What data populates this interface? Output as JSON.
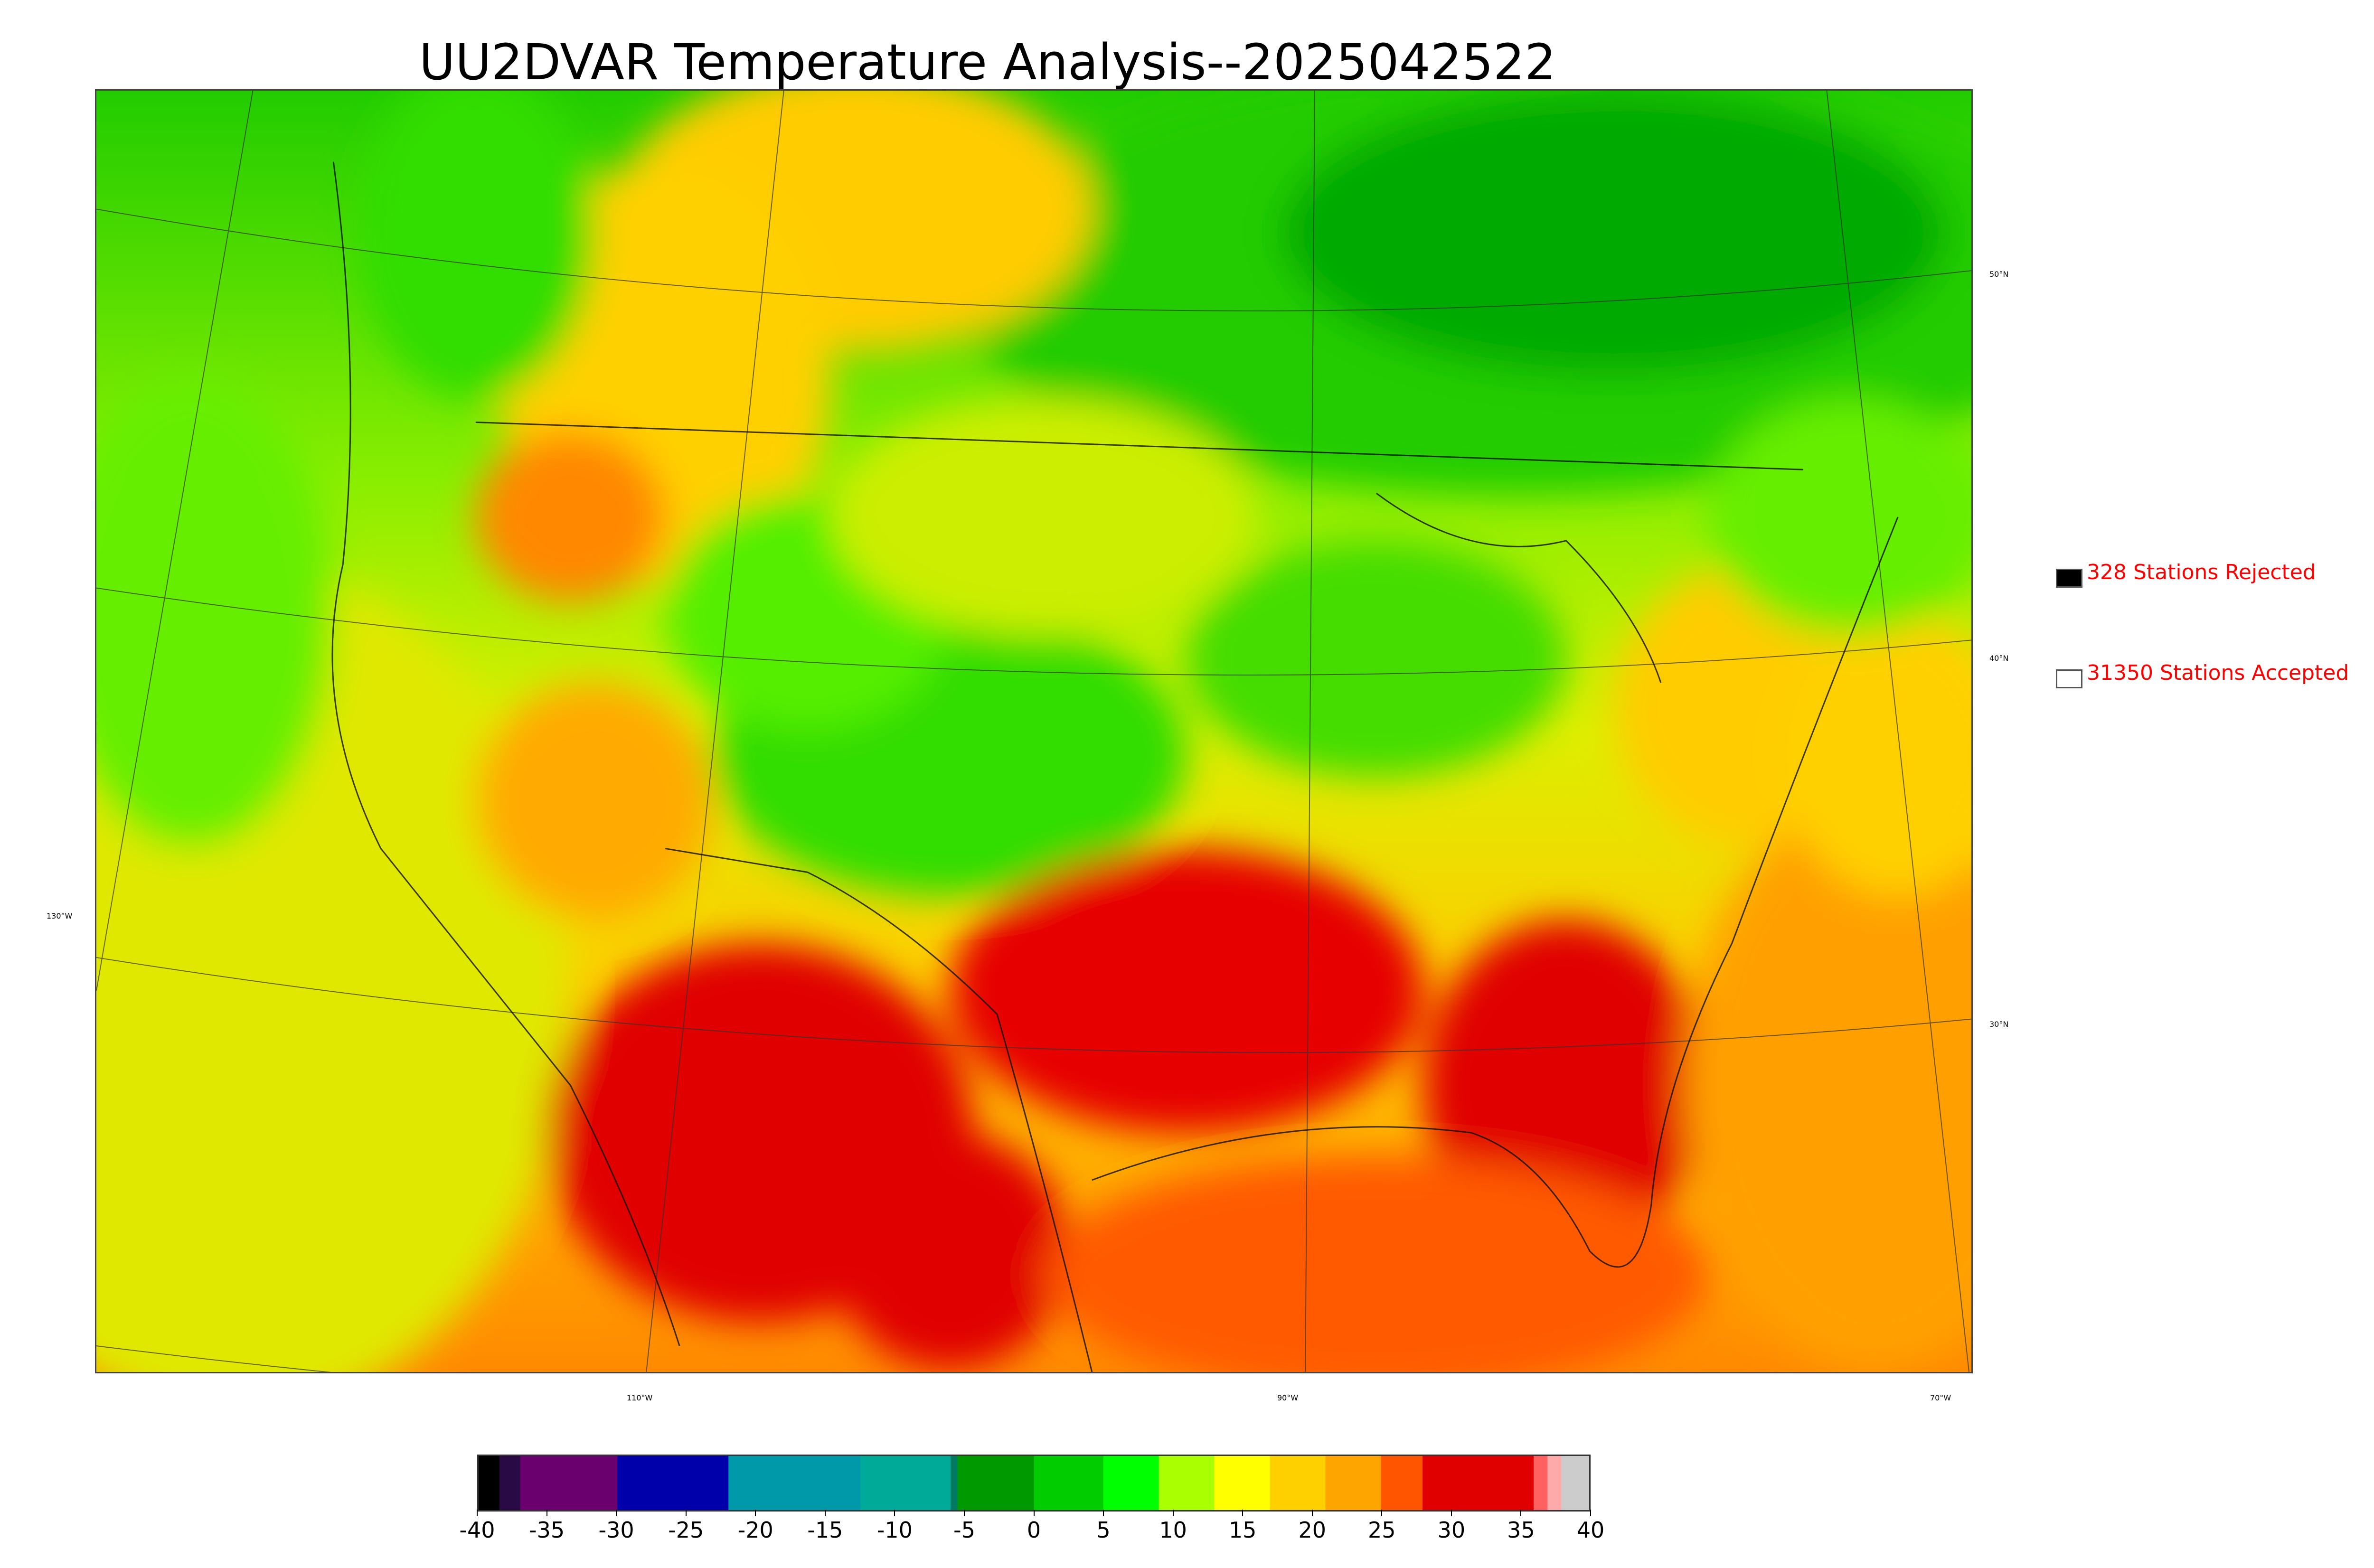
{
  "title": "UU2DVAR Temperature Analysis--2025042522",
  "map": {
    "latitude_labels": [
      "50°N",
      "40°N",
      "30°N"
    ],
    "longitude_labels": [
      "130°W",
      "110°W",
      "90°W",
      "70°W"
    ]
  },
  "legend": {
    "rejected": {
      "label": "328 Stations Rejected",
      "color": "#000000"
    },
    "accepted": {
      "label": "31350 Stations Accepted",
      "color": "#ffffff"
    }
  },
  "colorbar": {
    "ticks": [
      "-40",
      "-35",
      "-30",
      "-25",
      "-20",
      "-15",
      "-10",
      "-5",
      "0",
      "5",
      "10",
      "15",
      "20",
      "25",
      "30",
      "35",
      "40"
    ],
    "min": -40,
    "max": 40,
    "stops": [
      {
        "from": -40,
        "to": -38.5,
        "color": "#000000"
      },
      {
        "from": -38.5,
        "to": -37,
        "color": "#2a0a44"
      },
      {
        "from": -37,
        "to": -30,
        "color": "#6a006e"
      },
      {
        "from": -30,
        "to": -22,
        "color": "#0000aa"
      },
      {
        "from": -22,
        "to": -12.5,
        "color": "#0099aa"
      },
      {
        "from": -12.5,
        "to": -6,
        "color": "#00aa99"
      },
      {
        "from": -6,
        "to": -5.5,
        "color": "#007a60"
      },
      {
        "from": -5.5,
        "to": 0,
        "color": "#009900"
      },
      {
        "from": 0,
        "to": 5,
        "color": "#00cc00"
      },
      {
        "from": 5,
        "to": 9,
        "color": "#00ff00"
      },
      {
        "from": 9,
        "to": 13,
        "color": "#aaff00"
      },
      {
        "from": 13,
        "to": 17,
        "color": "#ffff00"
      },
      {
        "from": 17,
        "to": 21,
        "color": "#ffd000"
      },
      {
        "from": 21,
        "to": 25,
        "color": "#ffa500"
      },
      {
        "from": 25,
        "to": 28,
        "color": "#ff5500"
      },
      {
        "from": 28,
        "to": 36,
        "color": "#e00000"
      },
      {
        "from": 36,
        "to": 37,
        "color": "#ff6060"
      },
      {
        "from": 37,
        "to": 38,
        "color": "#ffaaaa"
      },
      {
        "from": 38,
        "to": 40,
        "color": "#cccccc"
      }
    ]
  }
}
